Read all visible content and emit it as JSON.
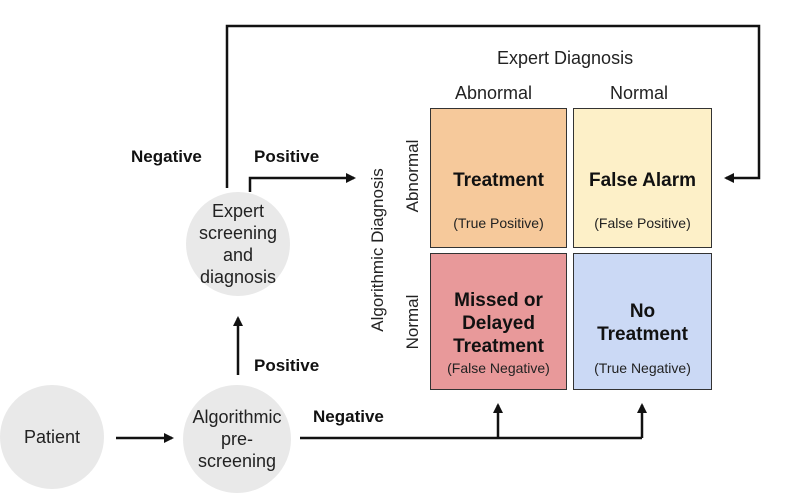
{
  "nodes": {
    "patient": "Patient",
    "algorithmic_line1": "Algorithmic",
    "algorithmic_line2": "pre-screening",
    "expert_line1": "Expert",
    "expert_line2": "screening and",
    "expert_line3": "diagnosis"
  },
  "edges": {
    "negative_top": "Negative",
    "positive_top": "Positive",
    "positive_mid": "Positive",
    "negative_bottom": "Negative"
  },
  "matrix": {
    "expert_header": "Expert Diagnosis",
    "expert_abnormal": "Abnormal",
    "expert_normal": "Normal",
    "algo_header": "Algorithmic Diagnosis",
    "algo_abnormal": "Abnormal",
    "algo_normal": "Normal",
    "cells": {
      "tp_title": "Treatment",
      "tp_sub": "(True Positive)",
      "fp_title": "False Alarm",
      "fp_sub": "(False Positive)",
      "fn_title_1": "Missed or",
      "fn_title_2": "Delayed",
      "fn_title_3": "Treatment",
      "fn_sub": "(False Negative)",
      "tn_title_1": "No",
      "tn_title_2": "Treatment",
      "tn_sub": "(True Negative)"
    }
  },
  "colors": {
    "true_positive": "#f6c99b",
    "false_positive": "#fdf0c8",
    "false_negative": "#e8999a",
    "true_negative": "#cbd9f5",
    "node_fill": "#e9e9e9"
  }
}
